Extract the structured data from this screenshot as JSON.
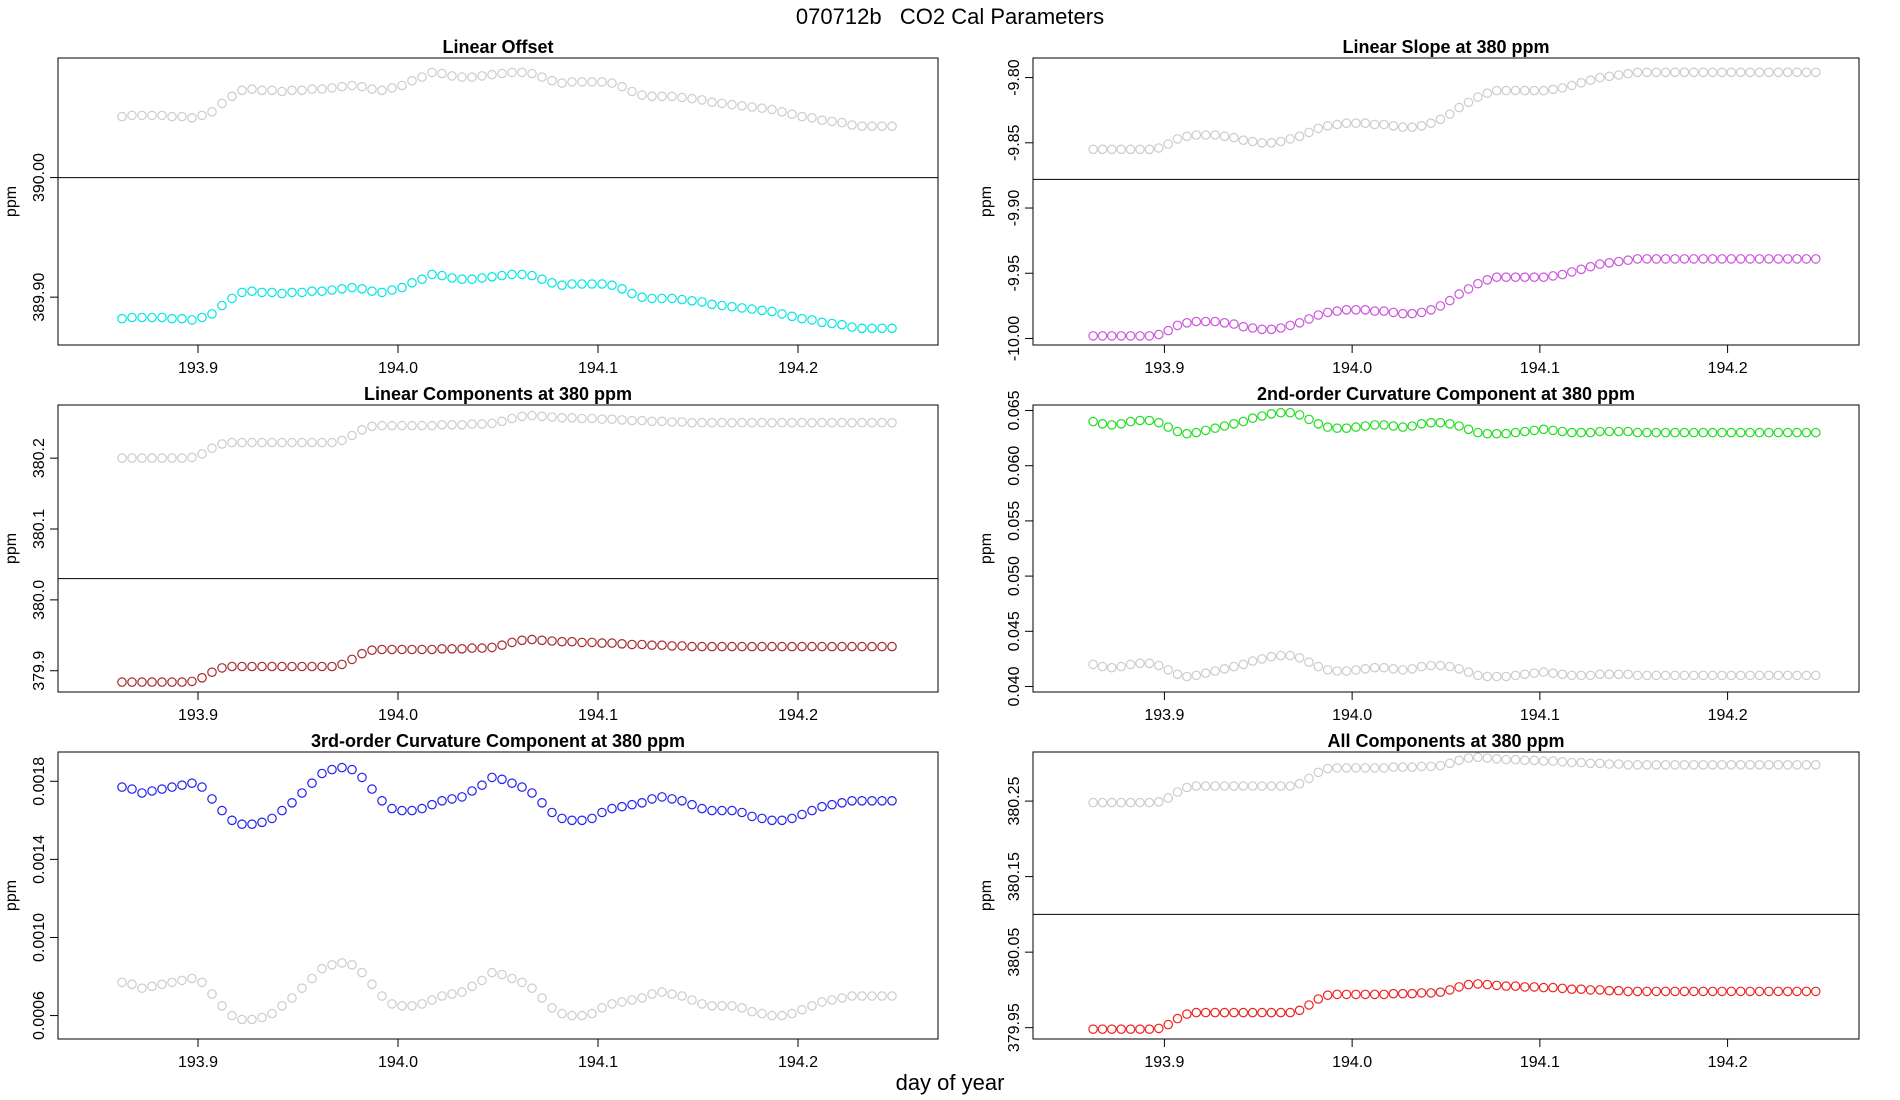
{
  "figure": {
    "title": "070712b   CO2 Cal Parameters",
    "xlabel": "day of year"
  },
  "chart_data": [
    {
      "type": "scatter",
      "title": "Linear Offset",
      "ylabel": "ppm",
      "xlim": [
        193.83,
        194.27
      ],
      "ylim": [
        389.86,
        390.1
      ],
      "xticks": [
        "193.9",
        "194.0",
        "194.1",
        "194.2"
      ],
      "yticks": [
        "389.90",
        "390.00"
      ],
      "hline": 390.0,
      "upper_color": "#cccccc",
      "lower_color": "#00e5e5",
      "x_start": 193.862,
      "x_step": 0.005,
      "n": 78,
      "upper_values": [
        390.051,
        390.052,
        390.052,
        390.052,
        390.052,
        390.051,
        390.051,
        390.05,
        390.052,
        390.055,
        390.062,
        390.068,
        390.073,
        390.074,
        390.073,
        390.073,
        390.072,
        390.073,
        390.073,
        390.074,
        390.074,
        390.075,
        390.076,
        390.077,
        390.076,
        390.074,
        390.073,
        390.075,
        390.077,
        390.081,
        390.084,
        390.088,
        390.087,
        390.085,
        390.084,
        390.084,
        390.085,
        390.086,
        390.087,
        390.088,
        390.088,
        390.087,
        390.084,
        390.081,
        390.079,
        390.08,
        390.08,
        390.08,
        390.08,
        390.079,
        390.076,
        390.072,
        390.069,
        390.068,
        390.068,
        390.068,
        390.067,
        390.066,
        390.065,
        390.063,
        390.062,
        390.061,
        390.06,
        390.059,
        390.058,
        390.057,
        390.055,
        390.053,
        390.051,
        390.05,
        390.048,
        390.047,
        390.046,
        390.044,
        390.043,
        390.043,
        390.043,
        390.043
      ],
      "lower_values": [
        389.882,
        389.883,
        389.883,
        389.883,
        389.883,
        389.882,
        389.882,
        389.881,
        389.883,
        389.886,
        389.893,
        389.899,
        389.904,
        389.905,
        389.904,
        389.904,
        389.903,
        389.904,
        389.904,
        389.905,
        389.905,
        389.906,
        389.907,
        389.908,
        389.907,
        389.905,
        389.904,
        389.906,
        389.908,
        389.912,
        389.915,
        389.919,
        389.918,
        389.916,
        389.915,
        389.915,
        389.916,
        389.917,
        389.918,
        389.919,
        389.919,
        389.918,
        389.915,
        389.912,
        389.91,
        389.911,
        389.911,
        389.911,
        389.911,
        389.91,
        389.907,
        389.903,
        389.9,
        389.899,
        389.899,
        389.899,
        389.898,
        389.897,
        389.896,
        389.894,
        389.893,
        389.892,
        389.891,
        389.89,
        389.889,
        389.888,
        389.886,
        389.884,
        389.882,
        389.881,
        389.879,
        389.878,
        389.877,
        389.875,
        389.874,
        389.874,
        389.874,
        389.874
      ]
    },
    {
      "type": "scatter",
      "title": "Linear Slope at 380 ppm",
      "ylabel": "ppm",
      "xlim": [
        193.83,
        194.27
      ],
      "ylim": [
        -10.005,
        -9.785
      ],
      "xticks": [
        "193.9",
        "194.0",
        "194.1",
        "194.2"
      ],
      "yticks": [
        "-10.00",
        "-9.95",
        "-9.90",
        "-9.85",
        "-9.80"
      ],
      "hline": -9.878,
      "upper_color": "#cccccc",
      "lower_color": "#cc55dd",
      "x_start": 193.862,
      "x_step": 0.005,
      "n": 78,
      "upper_values": [
        -9.855,
        -9.855,
        -9.855,
        -9.855,
        -9.855,
        -9.855,
        -9.855,
        -9.854,
        -9.851,
        -9.847,
        -9.845,
        -9.844,
        -9.844,
        -9.844,
        -9.845,
        -9.846,
        -9.848,
        -9.849,
        -9.85,
        -9.85,
        -9.849,
        -9.847,
        -9.845,
        -9.842,
        -9.839,
        -9.837,
        -9.836,
        -9.835,
        -9.835,
        -9.835,
        -9.836,
        -9.836,
        -9.837,
        -9.838,
        -9.838,
        -9.837,
        -9.835,
        -9.832,
        -9.828,
        -9.823,
        -9.819,
        -9.815,
        -9.812,
        -9.81,
        -9.81,
        -9.81,
        -9.81,
        -9.81,
        -9.81,
        -9.809,
        -9.808,
        -9.806,
        -9.804,
        -9.802,
        -9.8,
        -9.799,
        -9.798,
        -9.797,
        -9.796,
        -9.796,
        -9.796,
        -9.796,
        -9.796,
        -9.796,
        -9.796,
        -9.796,
        -9.796,
        -9.796,
        -9.796,
        -9.796,
        -9.796,
        -9.796,
        -9.796,
        -9.796,
        -9.796,
        -9.796,
        -9.796,
        -9.796
      ],
      "lower_values": [
        -9.998,
        -9.998,
        -9.998,
        -9.998,
        -9.998,
        -9.998,
        -9.998,
        -9.997,
        -9.994,
        -9.99,
        -9.988,
        -9.987,
        -9.987,
        -9.987,
        -9.988,
        -9.989,
        -9.991,
        -9.992,
        -9.993,
        -9.993,
        -9.992,
        -9.99,
        -9.988,
        -9.985,
        -9.982,
        -9.98,
        -9.979,
        -9.978,
        -9.978,
        -9.978,
        -9.979,
        -9.979,
        -9.98,
        -9.981,
        -9.981,
        -9.98,
        -9.978,
        -9.975,
        -9.971,
        -9.966,
        -9.962,
        -9.958,
        -9.955,
        -9.953,
        -9.953,
        -9.953,
        -9.953,
        -9.953,
        -9.953,
        -9.952,
        -9.951,
        -9.949,
        -9.947,
        -9.945,
        -9.943,
        -9.942,
        -9.941,
        -9.94,
        -9.939,
        -9.939,
        -9.939,
        -9.939,
        -9.939,
        -9.939,
        -9.939,
        -9.939,
        -9.939,
        -9.939,
        -9.939,
        -9.939,
        -9.939,
        -9.939,
        -9.939,
        -9.939,
        -9.939,
        -9.939,
        -9.939,
        -9.939
      ]
    },
    {
      "type": "scatter",
      "title": "Linear Components at 380 ppm",
      "ylabel": "ppm",
      "xlim": [
        193.83,
        194.27
      ],
      "ylim": [
        379.87,
        380.275
      ],
      "xticks": [
        "193.9",
        "194.0",
        "194.1",
        "194.2"
      ],
      "yticks": [
        "379.9",
        "380.0",
        "380.1",
        "380.2"
      ],
      "hline": 380.03,
      "upper_color": "#cccccc",
      "lower_color": "#a52a2a",
      "x_start": 193.862,
      "x_step": 0.005,
      "n": 78,
      "upper_values": [
        380.2,
        380.2,
        380.2,
        380.2,
        380.2,
        380.2,
        380.2,
        380.201,
        380.206,
        380.214,
        380.22,
        380.222,
        380.222,
        380.222,
        380.222,
        380.222,
        380.222,
        380.222,
        380.222,
        380.222,
        380.222,
        380.222,
        380.225,
        380.232,
        380.24,
        380.245,
        380.246,
        380.246,
        380.246,
        380.246,
        380.246,
        380.246,
        380.247,
        380.247,
        380.247,
        380.248,
        380.248,
        380.249,
        380.252,
        380.256,
        380.259,
        380.26,
        380.259,
        380.258,
        380.257,
        380.257,
        380.256,
        380.256,
        380.255,
        380.255,
        380.254,
        380.253,
        380.253,
        380.252,
        380.252,
        380.251,
        380.251,
        380.25,
        380.25,
        380.25,
        380.25,
        380.25,
        380.25,
        380.25,
        380.25,
        380.25,
        380.25,
        380.25,
        380.25,
        380.25,
        380.25,
        380.25,
        380.25,
        380.25,
        380.25,
        380.25,
        380.25,
        380.25
      ],
      "lower_values": [
        379.884,
        379.884,
        379.884,
        379.884,
        379.884,
        379.884,
        379.884,
        379.885,
        379.89,
        379.898,
        379.904,
        379.906,
        379.906,
        379.906,
        379.906,
        379.906,
        379.906,
        379.906,
        379.906,
        379.906,
        379.906,
        379.906,
        379.909,
        379.916,
        379.924,
        379.929,
        379.93,
        379.93,
        379.93,
        379.93,
        379.93,
        379.93,
        379.931,
        379.931,
        379.931,
        379.932,
        379.932,
        379.933,
        379.936,
        379.94,
        379.943,
        379.944,
        379.943,
        379.942,
        379.941,
        379.941,
        379.94,
        379.94,
        379.939,
        379.939,
        379.938,
        379.937,
        379.937,
        379.936,
        379.936,
        379.935,
        379.935,
        379.934,
        379.934,
        379.934,
        379.934,
        379.934,
        379.934,
        379.934,
        379.934,
        379.934,
        379.934,
        379.934,
        379.934,
        379.934,
        379.934,
        379.934,
        379.934,
        379.934,
        379.934,
        379.934,
        379.934,
        379.934
      ]
    },
    {
      "type": "scatter",
      "title": "2nd-order Curvature Component at 380 ppm",
      "ylabel": "ppm",
      "xlim": [
        193.83,
        194.27
      ],
      "ylim": [
        0.0395,
        0.0655
      ],
      "xticks": [
        "193.9",
        "194.0",
        "194.1",
        "194.2"
      ],
      "yticks": [
        "0.040",
        "0.045",
        "0.050",
        "0.055",
        "0.060",
        "0.065"
      ],
      "upper_color": "#22dd22",
      "lower_color": "#cccccc",
      "x_start": 193.862,
      "x_step": 0.005,
      "n": 78,
      "upper_values": [
        0.064,
        0.0638,
        0.0637,
        0.0638,
        0.064,
        0.0641,
        0.0641,
        0.0639,
        0.0635,
        0.0631,
        0.0629,
        0.063,
        0.0632,
        0.0634,
        0.0636,
        0.0638,
        0.064,
        0.0643,
        0.0645,
        0.0647,
        0.0648,
        0.0648,
        0.0646,
        0.0642,
        0.0638,
        0.0635,
        0.0634,
        0.0634,
        0.0635,
        0.0636,
        0.0637,
        0.0637,
        0.0636,
        0.0635,
        0.0636,
        0.0638,
        0.0639,
        0.0639,
        0.0638,
        0.0636,
        0.0633,
        0.063,
        0.0629,
        0.0629,
        0.0629,
        0.063,
        0.0631,
        0.0632,
        0.0633,
        0.0632,
        0.0631,
        0.063,
        0.063,
        0.063,
        0.0631,
        0.0631,
        0.0631,
        0.0631,
        0.063,
        0.063,
        0.063,
        0.063,
        0.063,
        0.063,
        0.063,
        0.063,
        0.063,
        0.063,
        0.063,
        0.063,
        0.063,
        0.063,
        0.063,
        0.063,
        0.063,
        0.063,
        0.063,
        0.063
      ],
      "lower_values": [
        0.042,
        0.0418,
        0.0417,
        0.0418,
        0.042,
        0.0421,
        0.0421,
        0.0419,
        0.0415,
        0.0411,
        0.0409,
        0.041,
        0.0412,
        0.0414,
        0.0416,
        0.0418,
        0.042,
        0.0423,
        0.0425,
        0.0427,
        0.0428,
        0.0428,
        0.0426,
        0.0422,
        0.0418,
        0.0415,
        0.0414,
        0.0414,
        0.0415,
        0.0416,
        0.0417,
        0.0417,
        0.0416,
        0.0415,
        0.0416,
        0.0418,
        0.0419,
        0.0419,
        0.0418,
        0.0416,
        0.0413,
        0.041,
        0.0409,
        0.0409,
        0.0409,
        0.041,
        0.0411,
        0.0412,
        0.0413,
        0.0412,
        0.0411,
        0.041,
        0.041,
        0.041,
        0.0411,
        0.0411,
        0.0411,
        0.0411,
        0.041,
        0.041,
        0.041,
        0.041,
        0.041,
        0.041,
        0.041,
        0.041,
        0.041,
        0.041,
        0.041,
        0.041,
        0.041,
        0.041,
        0.041,
        0.041,
        0.041,
        0.041,
        0.041,
        0.041
      ]
    },
    {
      "type": "scatter",
      "title": "3rd-order Curvature Component at 380 ppm",
      "ylabel": "ppm",
      "xlim": [
        193.83,
        194.27
      ],
      "ylim": [
        0.00048,
        0.00195
      ],
      "xticks": [
        "193.9",
        "194.0",
        "194.1",
        "194.2"
      ],
      "yticks": [
        "0.0006",
        "0.0010",
        "0.0014",
        "0.0018"
      ],
      "upper_color": "#2222ee",
      "lower_color": "#cccccc",
      "x_start": 193.862,
      "x_step": 0.005,
      "n": 78,
      "upper_values": [
        0.00177,
        0.00176,
        0.00174,
        0.00175,
        0.00176,
        0.00177,
        0.00178,
        0.00179,
        0.00177,
        0.00171,
        0.00165,
        0.0016,
        0.00158,
        0.00158,
        0.00159,
        0.00161,
        0.00165,
        0.00169,
        0.00174,
        0.00179,
        0.00184,
        0.00186,
        0.00187,
        0.00186,
        0.00182,
        0.00176,
        0.0017,
        0.00166,
        0.00165,
        0.00165,
        0.00166,
        0.00168,
        0.0017,
        0.00171,
        0.00172,
        0.00175,
        0.00178,
        0.00182,
        0.00181,
        0.00179,
        0.00177,
        0.00174,
        0.00169,
        0.00164,
        0.00161,
        0.0016,
        0.0016,
        0.00161,
        0.00164,
        0.00166,
        0.00167,
        0.00168,
        0.00169,
        0.00171,
        0.00172,
        0.00171,
        0.0017,
        0.00168,
        0.00166,
        0.00165,
        0.00165,
        0.00165,
        0.00164,
        0.00162,
        0.00161,
        0.0016,
        0.0016,
        0.00161,
        0.00163,
        0.00165,
        0.00167,
        0.00168,
        0.00169,
        0.0017,
        0.0017,
        0.0017,
        0.0017,
        0.0017
      ],
      "lower_values": [
        0.00077,
        0.00076,
        0.00074,
        0.00075,
        0.00076,
        0.00077,
        0.00078,
        0.00079,
        0.00077,
        0.00071,
        0.00065,
        0.0006,
        0.00058,
        0.00058,
        0.00059,
        0.00061,
        0.00065,
        0.00069,
        0.00074,
        0.00079,
        0.00084,
        0.00086,
        0.00087,
        0.00086,
        0.00082,
        0.00076,
        0.0007,
        0.00066,
        0.00065,
        0.00065,
        0.00066,
        0.00068,
        0.0007,
        0.00071,
        0.00072,
        0.00075,
        0.00078,
        0.00082,
        0.00081,
        0.00079,
        0.00077,
        0.00074,
        0.00069,
        0.00064,
        0.00061,
        0.0006,
        0.0006,
        0.00061,
        0.00064,
        0.00066,
        0.00067,
        0.00068,
        0.00069,
        0.00071,
        0.00072,
        0.00071,
        0.0007,
        0.00068,
        0.00066,
        0.00065,
        0.00065,
        0.00065,
        0.00064,
        0.00062,
        0.00061,
        0.0006,
        0.0006,
        0.00061,
        0.00063,
        0.00065,
        0.00067,
        0.00068,
        0.00069,
        0.0007,
        0.0007,
        0.0007,
        0.0007,
        0.0007
      ]
    },
    {
      "type": "scatter",
      "title": "All Components at 380 ppm",
      "ylabel": "ppm",
      "xlim": [
        193.83,
        194.27
      ],
      "ylim": [
        379.935,
        380.315
      ],
      "xticks": [
        "193.9",
        "194.0",
        "194.1",
        "194.2"
      ],
      "yticks": [
        "379.95",
        "380.05",
        "380.15",
        "380.25"
      ],
      "hline": 380.1,
      "upper_color": "#cccccc",
      "lower_color": "#ee2222",
      "x_start": 193.862,
      "x_step": 0.005,
      "n": 78,
      "upper_values": [
        380.248,
        380.248,
        380.248,
        380.248,
        380.248,
        380.248,
        380.248,
        380.249,
        380.254,
        380.262,
        380.268,
        380.27,
        380.27,
        380.27,
        380.27,
        380.27,
        380.27,
        380.27,
        380.27,
        380.27,
        380.27,
        380.27,
        380.273,
        380.28,
        380.288,
        380.293,
        380.294,
        380.294,
        380.294,
        380.294,
        380.294,
        380.294,
        380.295,
        380.295,
        380.295,
        380.296,
        380.296,
        380.297,
        380.3,
        380.304,
        380.307,
        380.308,
        380.307,
        380.306,
        380.305,
        380.305,
        380.304,
        380.304,
        380.303,
        380.303,
        380.302,
        380.301,
        380.301,
        380.3,
        380.3,
        380.299,
        380.299,
        380.298,
        380.298,
        380.298,
        380.298,
        380.298,
        380.298,
        380.298,
        380.298,
        380.298,
        380.298,
        380.298,
        380.298,
        380.298,
        380.298,
        380.298,
        380.298,
        380.298,
        380.298,
        380.298,
        380.298,
        380.298
      ],
      "lower_values": [
        379.948,
        379.948,
        379.948,
        379.948,
        379.948,
        379.948,
        379.948,
        379.949,
        379.954,
        379.962,
        379.968,
        379.97,
        379.97,
        379.97,
        379.97,
        379.97,
        379.97,
        379.97,
        379.97,
        379.97,
        379.97,
        379.97,
        379.973,
        379.98,
        379.988,
        379.993,
        379.994,
        379.994,
        379.994,
        379.994,
        379.994,
        379.994,
        379.995,
        379.995,
        379.995,
        379.996,
        379.996,
        379.997,
        380.0,
        380.004,
        380.007,
        380.008,
        380.007,
        380.006,
        380.005,
        380.005,
        380.004,
        380.004,
        380.003,
        380.003,
        380.002,
        380.001,
        380.001,
        380.0,
        380.0,
        379.999,
        379.999,
        379.998,
        379.998,
        379.998,
        379.998,
        379.998,
        379.998,
        379.998,
        379.998,
        379.998,
        379.998,
        379.998,
        379.998,
        379.998,
        379.998,
        379.998,
        379.998,
        379.998,
        379.998,
        379.998,
        379.998,
        379.998
      ]
    }
  ]
}
